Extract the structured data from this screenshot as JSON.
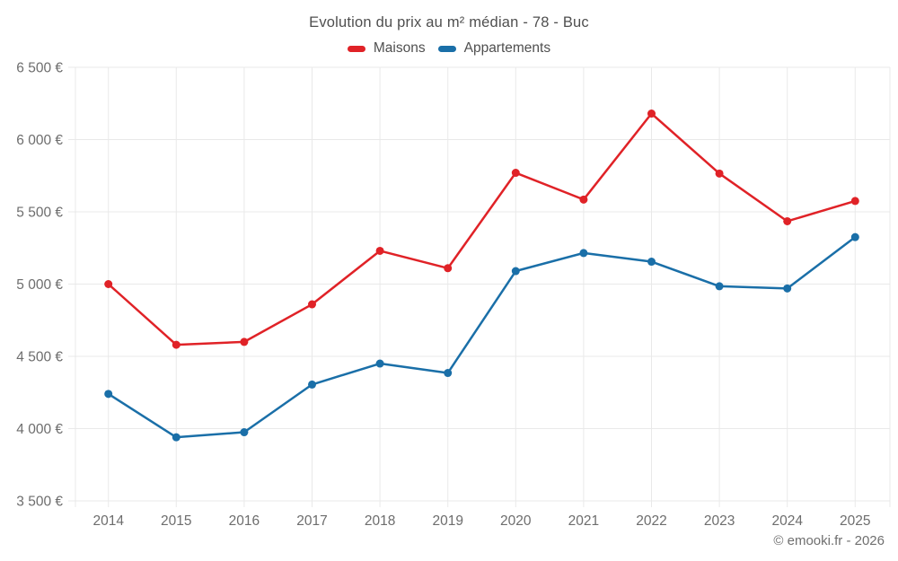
{
  "page": {
    "title": "Evolution du prix au m² médian - 78 - Buc",
    "footer": "© emooki.fr - 2026"
  },
  "chart_data": {
    "type": "line",
    "title": "Evolution du prix au m² médian - 78 - Buc",
    "categories": [
      "2014",
      "2015",
      "2016",
      "2017",
      "2018",
      "2019",
      "2020",
      "2021",
      "2022",
      "2023",
      "2024",
      "2025"
    ],
    "series": [
      {
        "name": "Maisons",
        "color": "#e02227",
        "values": [
          5000,
          4580,
          4600,
          4860,
          5230,
          5110,
          5770,
          5585,
          6180,
          5765,
          5435,
          5575
        ]
      },
      {
        "name": "Appartements",
        "color": "#1a6fa8",
        "values": [
          4240,
          3940,
          3975,
          4305,
          4450,
          4385,
          5090,
          5215,
          5155,
          4985,
          4970,
          5325
        ]
      }
    ],
    "ylim": [
      3500,
      6500
    ],
    "ytick_step": 500,
    "ytick_labels": [
      "3 500 €",
      "4 000 €",
      "4 500 €",
      "5 000 €",
      "5 500 €",
      "6 000 €",
      "6 500 €"
    ],
    "currency_suffix": "€",
    "grid": true,
    "legend_position": "top",
    "grid_color": "#e9e9e9"
  }
}
